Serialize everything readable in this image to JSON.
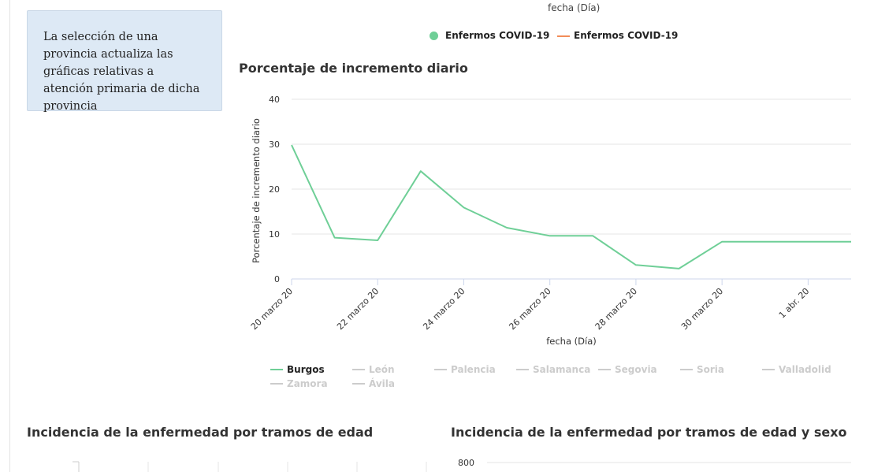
{
  "info_box": {
    "text": "La selección de una provincia actualiza las gráficas relativas a atención primaria de dicha provincia"
  },
  "top_chart": {
    "xlabel": "fecha (Día)",
    "legend": [
      {
        "label": "Enfermos COVID-19",
        "marker": "dot",
        "color": "#6fcf97"
      },
      {
        "label": "Enfermos COVID-19",
        "marker": "dash",
        "color": "#f28c58"
      }
    ]
  },
  "chart_data": [
    {
      "type": "line",
      "title": "Porcentaje de incremento diario",
      "xlabel": "fecha (Día)",
      "ylabel": "Porcentaje de incremento diario",
      "ylim": [
        0,
        40
      ],
      "yticks": [
        0,
        10,
        20,
        30,
        40
      ],
      "x": [
        "2020-03-20",
        "2020-03-21",
        "2020-03-22",
        "2020-03-23",
        "2020-03-24",
        "2020-03-25",
        "2020-03-26",
        "2020-03-27",
        "2020-03-28",
        "2020-03-29",
        "2020-03-30",
        "2020-03-31",
        "2020-04-01",
        "2020-04-02"
      ],
      "xticks": [
        "20 marzo 20",
        "22 marzo 20",
        "24 marzo 20",
        "26 marzo 20",
        "28 marzo 20",
        "30 marzo 20",
        "1 abr. 20"
      ],
      "grid": true,
      "legend_position": "bottom",
      "series": [
        {
          "name": "Burgos",
          "color": "#6fcf97",
          "active": true,
          "values": [
            29.8,
            9.2,
            8.6,
            24.0,
            15.9,
            11.4,
            9.6,
            9.6,
            3.1,
            2.3,
            8.3,
            8.3,
            8.3,
            8.3
          ]
        },
        {
          "name": "León",
          "color": "#cccccc",
          "active": false
        },
        {
          "name": "Palencia",
          "color": "#cccccc",
          "active": false
        },
        {
          "name": "Salamanca",
          "color": "#cccccc",
          "active": false
        },
        {
          "name": "Segovia",
          "color": "#cccccc",
          "active": false
        },
        {
          "name": "Soria",
          "color": "#cccccc",
          "active": false
        },
        {
          "name": "Valladolid",
          "color": "#cccccc",
          "active": false
        },
        {
          "name": "Zamora",
          "color": "#cccccc",
          "active": false
        },
        {
          "name": "Ávila",
          "color": "#cccccc",
          "active": false
        }
      ]
    },
    {
      "type": "bar",
      "title": "Incidencia de la enfermedad por tramos de edad"
    },
    {
      "type": "bar",
      "title": "Incidencia de la enfermedad por tramos de edad y sexo",
      "yticks": [
        800
      ]
    }
  ],
  "colors": {
    "active_series": "#6fcf97",
    "inactive_series": "#cccccc",
    "orange_series": "#f28c58",
    "info_box_bg": "#dde9f5"
  }
}
